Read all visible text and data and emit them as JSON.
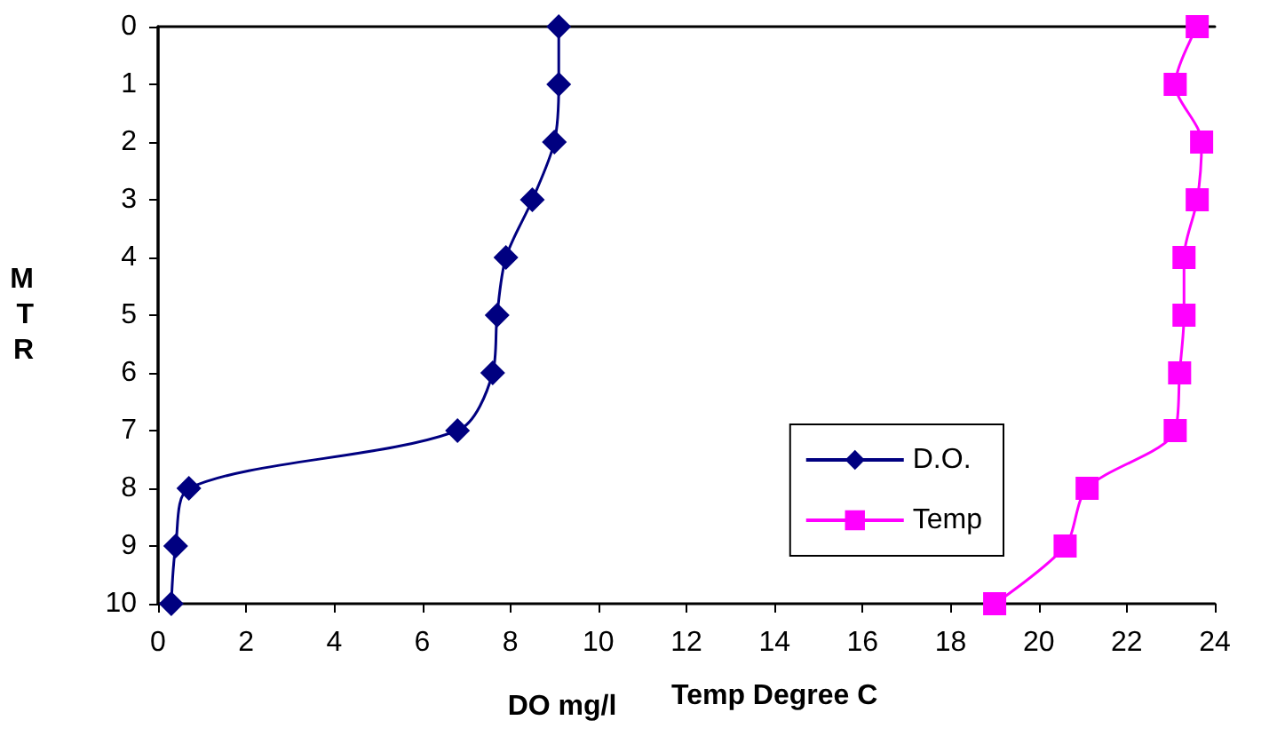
{
  "chart_data": {
    "type": "line",
    "xlabel": "DO mg/l",
    "ylabel": "MTR",
    "annotations": [
      "Temp Degree C"
    ],
    "xlim": [
      0,
      24
    ],
    "xticks": [
      0,
      2,
      4,
      6,
      8,
      10,
      12,
      14,
      16,
      18,
      20,
      22,
      24
    ],
    "ylim": [
      10,
      0
    ],
    "yticks": [
      0,
      1,
      2,
      3,
      4,
      5,
      6,
      7,
      8,
      9,
      10
    ],
    "grid": false,
    "legend": "bottom right",
    "line_style": "solid",
    "series": [
      {
        "name": "D.O.",
        "color": "#000080",
        "marker": "diamond",
        "x": [
          9.1,
          9.1,
          9.0,
          8.5,
          7.9,
          7.7,
          7.6,
          6.8,
          0.7,
          0.4,
          0.3
        ],
        "values": [
          0,
          1,
          2,
          3,
          4,
          5,
          6,
          7,
          8,
          9,
          10
        ]
      },
      {
        "name": "Temp",
        "color": "#ff00ff",
        "marker": "square",
        "x": [
          23.6,
          23.1,
          23.7,
          23.6,
          23.3,
          23.3,
          23.2,
          23.1,
          21.1,
          20.6,
          19.0
        ],
        "values": [
          0,
          1,
          2,
          3,
          4,
          5,
          6,
          7,
          8,
          9,
          10
        ]
      }
    ]
  }
}
